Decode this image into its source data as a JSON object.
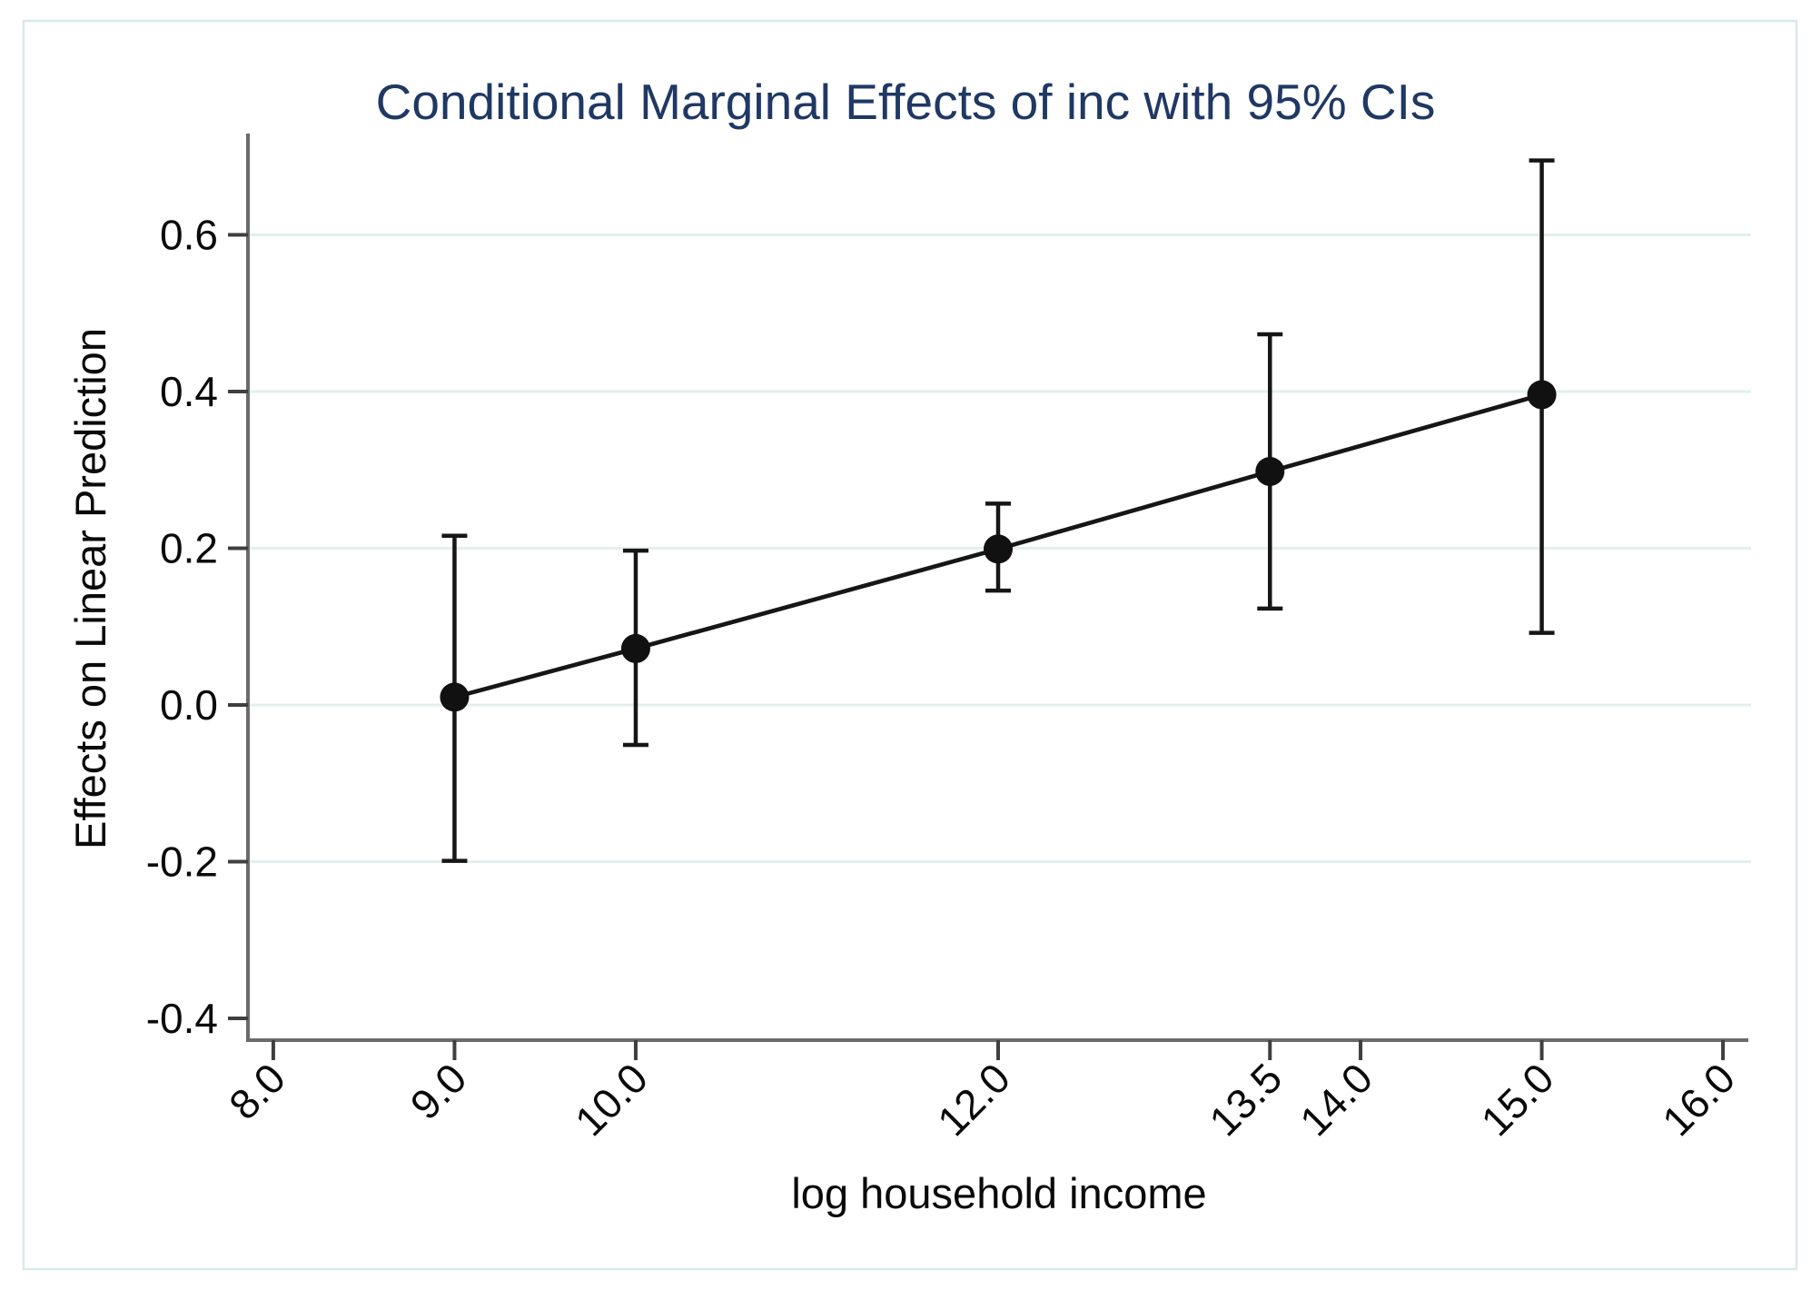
{
  "chart_data": {
    "type": "line",
    "title": "Conditional Marginal Effects of inc with 95% CIs",
    "xlabel": "log household income",
    "ylabel": "Effects on Linear Prediction",
    "x": [
      9,
      10,
      12,
      13.5,
      15
    ],
    "y": [
      0.01,
      0.072,
      0.199,
      0.298,
      0.396
    ],
    "ci_low": [
      -0.199,
      -0.051,
      0.146,
      0.123,
      0.092
    ],
    "ci_high": [
      0.216,
      0.197,
      0.257,
      0.473,
      0.695
    ],
    "x_ticks": [
      8,
      9,
      10,
      12,
      13.5,
      14,
      15,
      16
    ],
    "x_tick_labels": [
      "8.0",
      "9.0",
      "10.0",
      "12.0",
      "13.5",
      "14.0",
      "15.0",
      "16.0"
    ],
    "y_ticks": [
      -0.4,
      -0.2,
      0,
      0.2,
      0.4,
      0.6
    ],
    "y_tick_labels": [
      "-0.4",
      "-0.2",
      "0.0",
      "0.2",
      "0.4",
      "0.6"
    ],
    "grid_y": [
      -0.2,
      0,
      0.2,
      0.4,
      0.6
    ],
    "xlim": [
      7.86,
      16.155
    ],
    "ylim": [
      -0.4278,
      0.7293
    ],
    "grid_on": true,
    "legend": "none",
    "colors": {
      "title": "#1f3864",
      "series": "#161616",
      "marker": "#111111",
      "axis": "#6b6b6b",
      "tick": "#3f3f3f",
      "label": "#0a0a0a",
      "grid": "#e3efef",
      "border": "#d9e9e9",
      "background": "#ffffff"
    }
  }
}
